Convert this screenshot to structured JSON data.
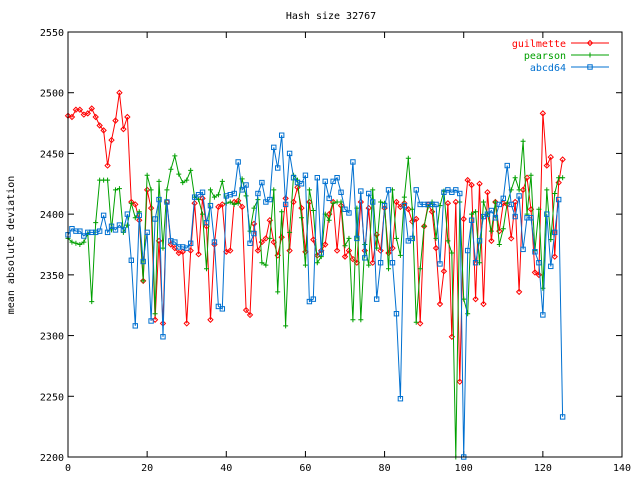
{
  "chart_data": {
    "type": "line",
    "title": "Hash size 32767",
    "xlabel": "",
    "ylabel": "mean absolute deviation",
    "xlim": [
      0,
      140
    ],
    "ylim": [
      2200,
      2550
    ],
    "xticks": [
      0,
      20,
      40,
      60,
      80,
      100,
      120,
      140
    ],
    "yticks": [
      2200,
      2250,
      2300,
      2350,
      2400,
      2450,
      2500,
      2550
    ],
    "grid": false,
    "legend_position": "top-right",
    "series": [
      {
        "name": "guilmette",
        "color": "#ff0000",
        "marker": "diamond",
        "values": [
          2481,
          2480,
          2486,
          2486,
          2482,
          2483,
          2487,
          2480,
          2473,
          2469,
          2440,
          2461,
          2477,
          2500,
          2470,
          2480,
          2410,
          2408,
          2395,
          2345,
          2420,
          2405,
          2313,
          2378,
          2310,
          2410,
          2375,
          2372,
          2368,
          2369,
          2310,
          2370,
          2409,
          2367,
          2413,
          2390,
          2313,
          2375,
          2406,
          2408,
          2369,
          2370,
          2410,
          2411,
          2406,
          2321,
          2317,
          2392,
          2370,
          2377,
          2380,
          2395,
          2377,
          2366,
          2381,
          2413,
          2370,
          2410,
          2422,
          2405,
          2369,
          2410,
          2379,
          2366,
          2370,
          2375,
          2400,
          2410,
          2370,
          2407,
          2365,
          2370,
          2363,
          2360,
          2410,
          2370,
          2405,
          2360,
          2383,
          2370,
          2405,
          2368,
          2372,
          2410,
          2406,
          2409,
          2404,
          2394,
          2396,
          2310,
          2390,
          2408,
          2402,
          2372,
          2326,
          2353,
          2409,
          2299,
          2410,
          2262,
          2396,
          2428,
          2424,
          2330,
          2425,
          2326,
          2418,
          2378,
          2410,
          2386,
          2409,
          2408,
          2380,
          2410,
          2336,
          2420,
          2430,
          2404,
          2352,
          2350,
          2483,
          2440,
          2447,
          2365,
          2426,
          2445
        ]
      },
      {
        "name": "pearson",
        "color": "#00a000",
        "marker": "plus",
        "values": [
          2380,
          2377,
          2376,
          2375,
          2377,
          2384,
          2328,
          2393,
          2428,
          2428,
          2428,
          2387,
          2420,
          2421,
          2385,
          2391,
          2409,
          2397,
          2402,
          2345,
          2432,
          2420,
          2318,
          2427,
          2372,
          2420,
          2437,
          2448,
          2433,
          2426,
          2428,
          2436,
          2414,
          2412,
          2400,
          2355,
          2420,
          2414,
          2416,
          2427,
          2409,
          2410,
          2408,
          2409,
          2429,
          2415,
          2386,
          2405,
          2412,
          2360,
          2358,
          2380,
          2420,
          2336,
          2402,
          2308,
          2385,
          2432,
          2428,
          2397,
          2358,
          2420,
          2403,
          2360,
          2365,
          2400,
          2395,
          2409,
          2410,
          2410,
          2374,
          2380,
          2313,
          2405,
          2313,
          2375,
          2358,
          2420,
          2372,
          2410,
          2409,
          2355,
          2420,
          2380,
          2366,
          2414,
          2446,
          2404,
          2311,
          2355,
          2390,
          2406,
          2410,
          2380,
          2407,
          2419,
          2378,
          2368,
          2200,
          2410,
          2330,
          2318,
          2400,
          2402,
          2360,
          2410,
          2400,
          2386,
          2410,
          2375,
          2388,
          2409,
          2420,
          2430,
          2420,
          2460,
          2400,
          2432,
          2370,
          2404,
          2339,
          2420,
          2379,
          2417,
          2430,
          2430
        ]
      },
      {
        "name": "abcd64",
        "color": "#0070d0",
        "marker": "square",
        "values": [
          2383,
          2388,
          2386,
          2386,
          2382,
          2385,
          2385,
          2385,
          2386,
          2399,
          2385,
          2390,
          2387,
          2391,
          2387,
          2400,
          2362,
          2308,
          2399,
          2361,
          2385,
          2312,
          2396,
          2412,
          2299,
          2410,
          2378,
          2377,
          2373,
          2373,
          2372,
          2376,
          2414,
          2416,
          2418,
          2393,
          2407,
          2377,
          2324,
          2322,
          2415,
          2416,
          2417,
          2443,
          2420,
          2424,
          2376,
          2384,
          2417,
          2426,
          2410,
          2412,
          2455,
          2438,
          2465,
          2408,
          2450,
          2430,
          2426,
          2425,
          2432,
          2328,
          2330,
          2430,
          2368,
          2427,
          2413,
          2427,
          2430,
          2418,
          2404,
          2401,
          2443,
          2380,
          2419,
          2364,
          2417,
          2410,
          2330,
          2360,
          2407,
          2420,
          2360,
          2318,
          2248,
          2407,
          2378,
          2380,
          2420,
          2408,
          2408,
          2408,
          2408,
          2408,
          2359,
          2418,
          2420,
          2418,
          2420,
          2417,
          2200,
          2370,
          2395,
          2360,
          2378,
          2398,
          2400,
          2403,
          2397,
          2408,
          2413,
          2440,
          2408,
          2398,
          2415,
          2371,
          2397,
          2397,
          2369,
          2360,
          2317,
          2400,
          2357,
          2385,
          2412,
          2233
        ]
      }
    ]
  }
}
